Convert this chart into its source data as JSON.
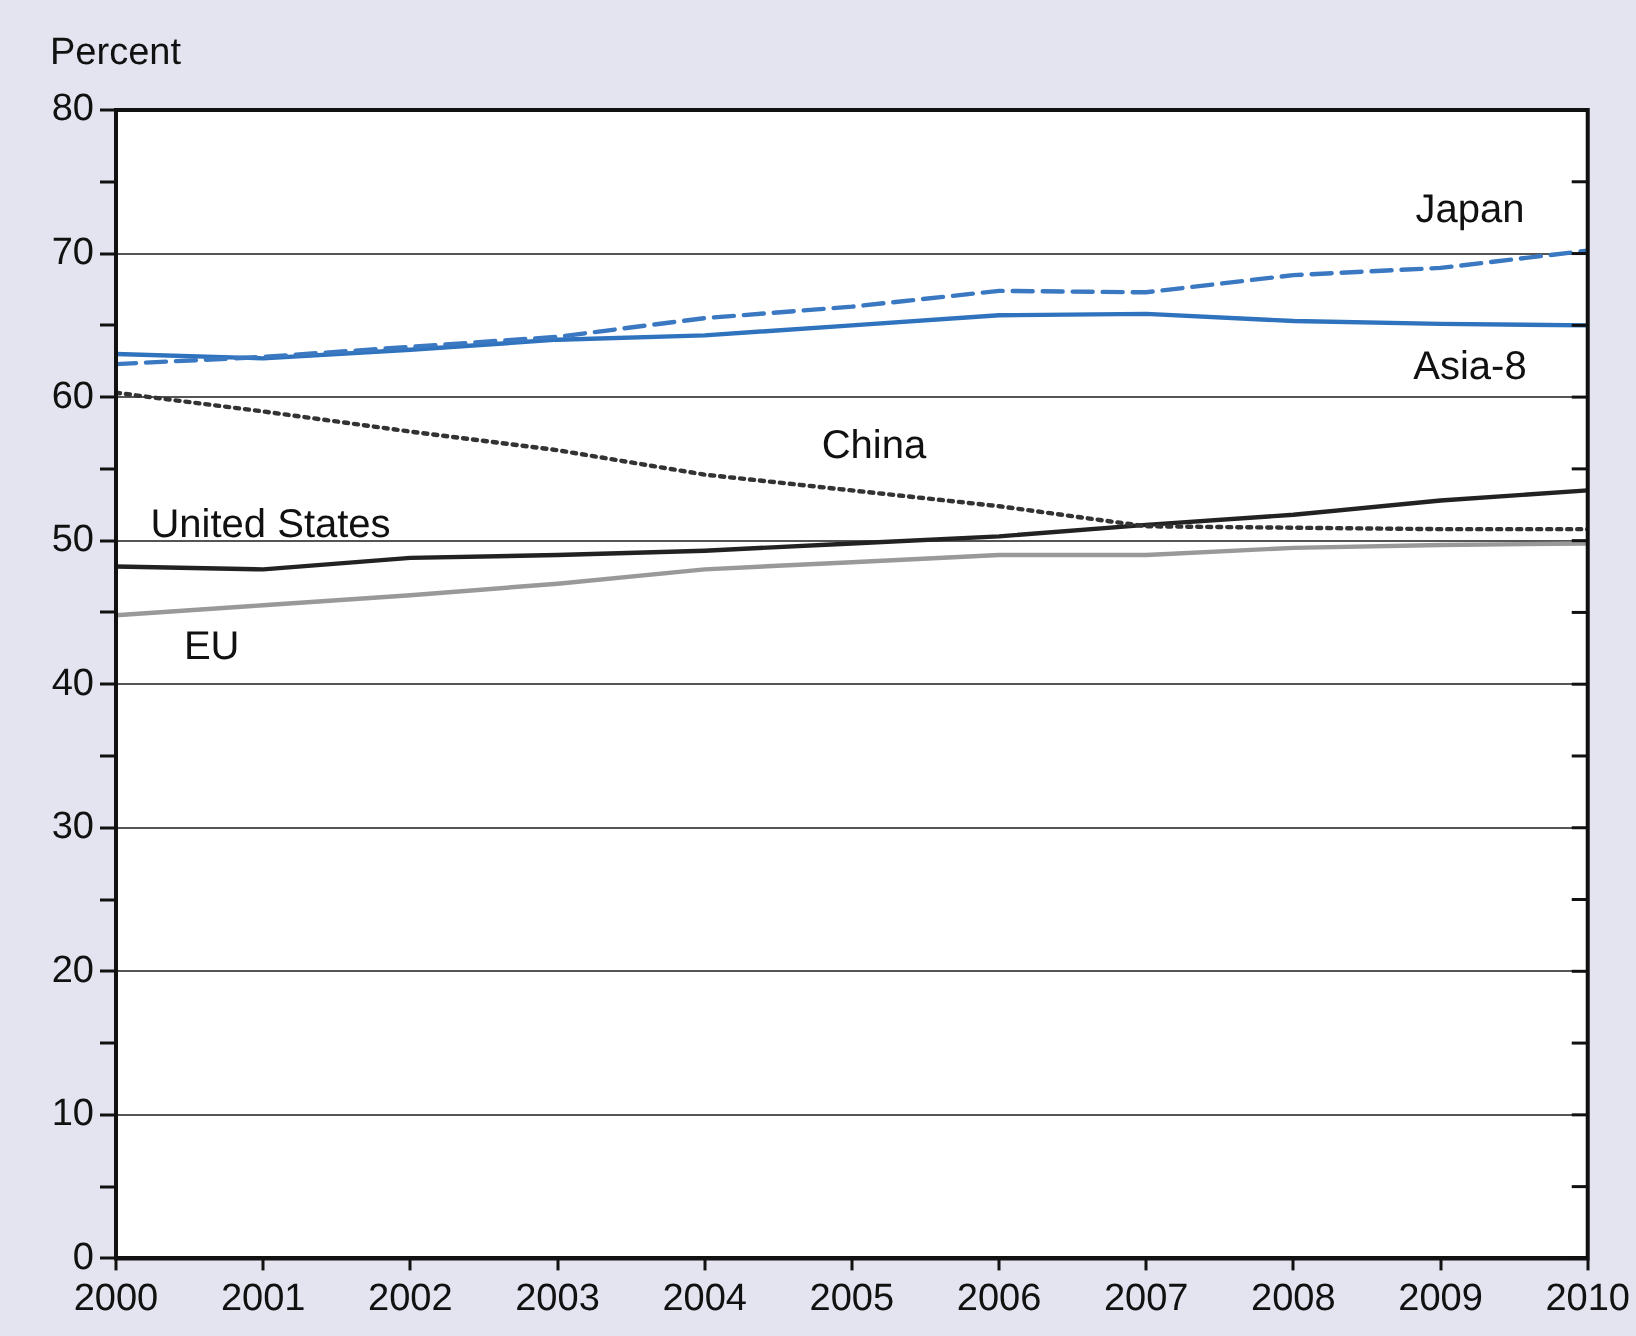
{
  "chart_data": {
    "type": "line",
    "ylabel": "Percent",
    "x": [
      2000,
      2001,
      2002,
      2003,
      2004,
      2005,
      2006,
      2007,
      2008,
      2009,
      2010
    ],
    "xlim": [
      2000,
      2010
    ],
    "xticks": [
      2000,
      2001,
      2002,
      2003,
      2004,
      2005,
      2006,
      2007,
      2008,
      2009,
      2010
    ],
    "ylim": [
      0,
      80
    ],
    "yticks": [
      0,
      {
        "value": 5,
        "label": null
      },
      10,
      {
        "value": 15,
        "label": null
      },
      20,
      {
        "value": 25,
        "label": null
      },
      30,
      {
        "value": 35,
        "label": null
      },
      40,
      {
        "value": 45,
        "label": null
      },
      50,
      {
        "value": 55,
        "label": null
      },
      60,
      {
        "value": 65,
        "label": null
      },
      70,
      {
        "value": 75,
        "label": null
      },
      80
    ],
    "grid": "y",
    "legend": false,
    "marker": "none",
    "series": [
      {
        "name": "Japan",
        "color": "#3a78c2",
        "line_style": "dashed",
        "values": [
          62.3,
          62.8,
          63.5,
          64.2,
          65.5,
          66.3,
          67.4,
          67.3,
          68.5,
          69.0,
          70.2
        ]
      },
      {
        "name": "Asia-8",
        "color": "#2f72bd",
        "line_style": "solid",
        "values": [
          63,
          62.7,
          63.3,
          64,
          64.3,
          65,
          65.7,
          65.8,
          65.3,
          65.1,
          65
        ]
      },
      {
        "name": "China",
        "color": "#333333",
        "line_style": "dotted",
        "values": [
          60.3,
          59,
          57.6,
          56.3,
          54.6,
          53.5,
          52.4,
          51,
          50.9,
          50.8,
          50.8
        ]
      },
      {
        "name": "United States",
        "color": "#222222",
        "line_style": "solid",
        "values": [
          48.2,
          48,
          48.8,
          49,
          49.3,
          49.8,
          50.3,
          51.1,
          51.8,
          52.8,
          53.5
        ]
      },
      {
        "name": "EU",
        "color": "#999999",
        "line_style": "solid",
        "values": [
          44.8,
          45.5,
          46.2,
          47,
          48,
          48.5,
          49,
          49,
          49.5,
          49.7,
          49.8
        ]
      }
    ]
  }
}
